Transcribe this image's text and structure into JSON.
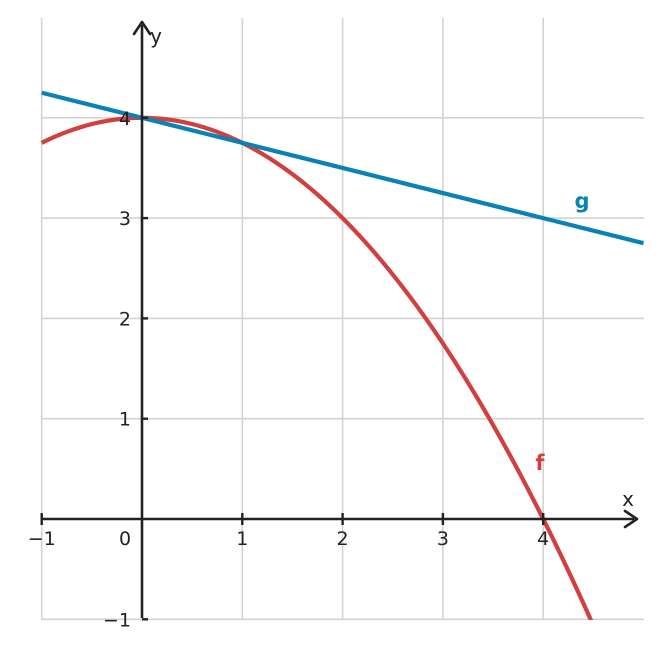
{
  "chart_data": {
    "type": "line",
    "xlabel": "x",
    "ylabel": "y",
    "xlim": [
      -1,
      5
    ],
    "ylim": [
      -1,
      5
    ],
    "grid": true,
    "x_ticks": [
      -1,
      0,
      1,
      2,
      3,
      4
    ],
    "y_ticks": [
      -1,
      1,
      2,
      3,
      4
    ],
    "x_tick_labels": [
      "−1",
      "0",
      "1",
      "2",
      "3",
      "4"
    ],
    "y_tick_labels": [
      "−1",
      "1",
      "2",
      "3",
      "4"
    ],
    "series": [
      {
        "name": "f",
        "color": "#d13f3f",
        "x": [
          -1,
          -0.5,
          0,
          0.5,
          1,
          1.5,
          2,
          2.5,
          3,
          3.5,
          4,
          4.5
        ],
        "y": [
          3.75,
          3.9375,
          4,
          3.9375,
          3.75,
          3.4375,
          3,
          2.4375,
          1.75,
          0.9375,
          0,
          -1.0625
        ]
      },
      {
        "name": "g",
        "color": "#0a82b5",
        "x": [
          -1,
          0,
          1,
          2,
          3,
          4,
          5
        ],
        "y": [
          4.25,
          4,
          3.75,
          3.5,
          3.25,
          3,
          2.75
        ]
      }
    ]
  }
}
